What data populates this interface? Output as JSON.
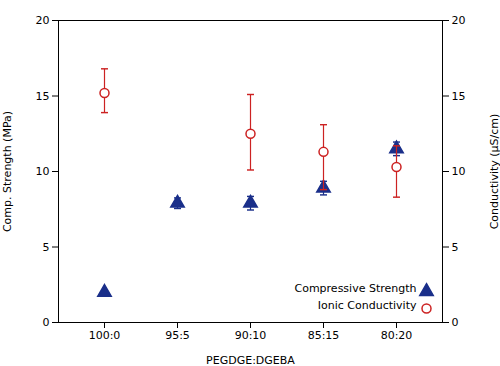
{
  "chart_data": {
    "type": "scatter",
    "xlabel": "PEGDGE:DGEBA",
    "ylabel": "Comp. Strength (MPa)",
    "y2label": "Conductivity (μS/cm)",
    "categories": [
      "100:0",
      "95:5",
      "90:10",
      "85:15",
      "80:20"
    ],
    "ylim": [
      0,
      20
    ],
    "yticks": [
      0,
      5,
      10,
      15,
      20
    ],
    "y2lim": [
      0,
      20
    ],
    "y2ticks": [
      0,
      5,
      10,
      15,
      20
    ],
    "grid": false,
    "legend": "lower right",
    "series": [
      {
        "name": "Compressive Strength",
        "color": "#1a2f8a",
        "marker": "triangle",
        "values": [
          2.0,
          7.9,
          7.9,
          8.9,
          11.5
        ],
        "error": [
          0.12,
          0.35,
          0.45,
          0.45,
          0.45
        ]
      },
      {
        "name": "Ionic Conductivity",
        "color": "#cc2222",
        "marker": "open_circle",
        "axis": "y2",
        "values": [
          15.2,
          null,
          12.5,
          11.3,
          10.3
        ],
        "error_up": [
          1.6,
          null,
          2.6,
          1.8,
          1.4
        ],
        "error_down": [
          1.3,
          null,
          2.4,
          2.5,
          2.0
        ]
      }
    ]
  }
}
